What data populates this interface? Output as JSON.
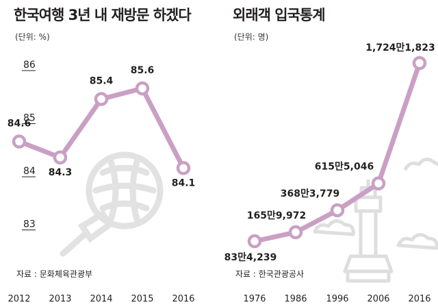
{
  "chart_data": [
    {
      "type": "line",
      "title": "한국여행 3년 내 재방문 하겠다",
      "unit": "(단위: %)",
      "source": "자료 : 문화체육관광부",
      "x": [
        "2012",
        "2013",
        "2014",
        "2015",
        "2016"
      ],
      "values": [
        84.6,
        84.3,
        85.4,
        85.6,
        84.1
      ],
      "data_labels": [
        "84.6",
        "84.3",
        "85.4",
        "85.6",
        "84.1"
      ],
      "yticks": [
        "86",
        "85",
        "84",
        "83"
      ],
      "ylim": [
        83,
        86
      ],
      "line_color": "#c9a0c4"
    },
    {
      "type": "line",
      "title": "외래객 입국통계",
      "unit": "(단위: 명)",
      "source": "자료 : 한국관광공사",
      "x": [
        "1976",
        "1986",
        "1996",
        "2006",
        "2016"
      ],
      "values": [
        834239,
        1659972,
        3683779,
        6155046,
        17241823
      ],
      "data_labels": [
        "83만4,239",
        "165만9,972",
        "368만3,779",
        "615만5,046",
        "1,724만1,823"
      ],
      "line_color": "#c9a0c4"
    }
  ]
}
